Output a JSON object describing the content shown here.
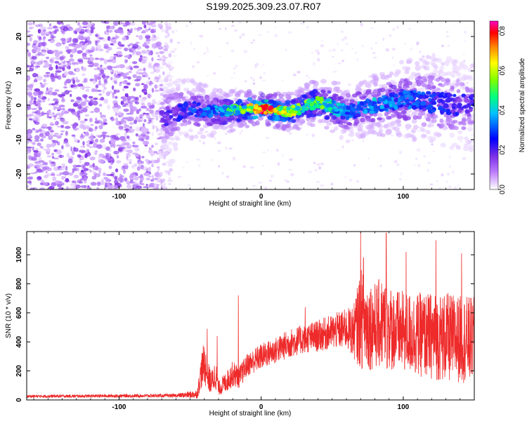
{
  "title": "S199.2025.309.23.07.R07",
  "colors": {
    "snr_line": "#ee2a2a",
    "spectrogram_background_noise": "#8a3ee6",
    "axis": "#000000"
  },
  "chart_data": [
    {
      "type": "heatmap",
      "name": "spectrogram",
      "xlabel": "Height of straight line (km)",
      "ylabel": "Frequency (Hz)",
      "xlim": [
        -165,
        150
      ],
      "ylim": [
        -24.5,
        24.5
      ],
      "xticks": [
        -100,
        0,
        100
      ],
      "yticks": [
        -20,
        -10,
        0,
        10,
        20
      ],
      "colorbar": {
        "label": "Normalized spectral amplitude",
        "range": [
          0.0,
          0.85
        ],
        "ticks": [
          0.0,
          0.2,
          0.4,
          0.6,
          0.8
        ],
        "tick_labels": [
          "0.0",
          "0.2",
          "0.4",
          "0.6",
          "0.8"
        ],
        "colors": [
          "#ffffff",
          "#8a2be2",
          "#0000ff",
          "#00ffff",
          "#00ff00",
          "#ffff00",
          "#ff8000",
          "#ff0000",
          "#ff00c0"
        ]
      },
      "features": {
        "noise_region_x_range": [
          -165,
          -70
        ],
        "noise_amplitude": 0.1,
        "signal_band": [
          {
            "x": -65,
            "f": -3,
            "width": 5,
            "amp": 0.2
          },
          {
            "x": -50,
            "f": -1,
            "width": 4,
            "amp": 0.25
          },
          {
            "x": -30,
            "f": -2,
            "width": 3,
            "amp": 0.35
          },
          {
            "x": -10,
            "f": -1,
            "width": 2.5,
            "amp": 0.55
          },
          {
            "x": 0,
            "f": -1,
            "width": 2,
            "amp": 0.85
          },
          {
            "x": 20,
            "f": -2,
            "width": 2.5,
            "amp": 0.55
          },
          {
            "x": 40,
            "f": 1,
            "width": 3,
            "amp": 0.5
          },
          {
            "x": 60,
            "f": -2,
            "width": 4,
            "amp": 0.3
          },
          {
            "x": 80,
            "f": 0,
            "width": 4,
            "amp": 0.35
          },
          {
            "x": 100,
            "f": 2,
            "width": 5,
            "amp": 0.3
          },
          {
            "x": 120,
            "f": 1,
            "width": 6,
            "amp": 0.25
          },
          {
            "x": 145,
            "f": 0,
            "width": 6,
            "amp": 0.2
          }
        ]
      }
    },
    {
      "type": "line",
      "name": "snr",
      "xlabel": "Height of straight line (km)",
      "ylabel": "SNR (10 * v/v)",
      "xlim": [
        -165,
        150
      ],
      "ylim": [
        0,
        1160
      ],
      "xticks": [
        -100,
        0,
        100
      ],
      "yticks": [
        0,
        200,
        400,
        600,
        800,
        1000
      ],
      "envelope": {
        "x": [
          -165,
          -60,
          -45,
          -42,
          -40,
          -38,
          -35,
          -32,
          -30,
          -25,
          -20,
          -15,
          -10,
          0,
          10,
          20,
          30,
          40,
          50,
          60,
          65,
          68,
          70,
          75,
          80,
          85,
          90,
          95,
          100,
          110,
          120,
          130,
          140,
          150
        ],
        "mean": [
          25,
          30,
          40,
          200,
          260,
          170,
          120,
          180,
          80,
          120,
          180,
          160,
          240,
          300,
          340,
          390,
          420,
          440,
          470,
          490,
          470,
          520,
          560,
          520,
          510,
          530,
          500,
          480,
          470,
          450,
          440,
          430,
          420,
          410
        ],
        "spread": [
          10,
          12,
          30,
          120,
          150,
          110,
          80,
          110,
          50,
          70,
          90,
          80,
          80,
          90,
          90,
          100,
          100,
          110,
          120,
          140,
          180,
          280,
          350,
          320,
          300,
          320,
          300,
          280,
          280,
          290,
          300,
          310,
          300,
          300
        ]
      },
      "peaks": [
        {
          "x": -38,
          "y": 490
        },
        {
          "x": -31,
          "y": 440
        },
        {
          "x": -16,
          "y": 720
        },
        {
          "x": 31,
          "y": 640
        },
        {
          "x": 70,
          "y": 1160
        },
        {
          "x": 72,
          "y": 980
        },
        {
          "x": 88,
          "y": 1150
        },
        {
          "x": 102,
          "y": 1020
        },
        {
          "x": 123,
          "y": 1100
        },
        {
          "x": 141,
          "y": 1010
        }
      ]
    }
  ]
}
